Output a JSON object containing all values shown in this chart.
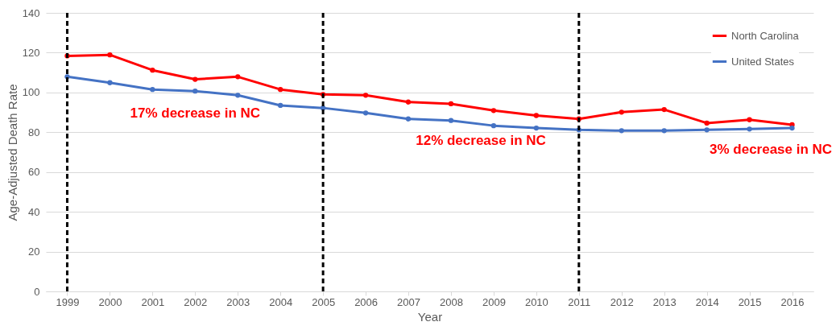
{
  "chart_data": {
    "type": "line",
    "xlabel": "Year",
    "ylabel": "Age-Adjusted Death Rate",
    "categories": [
      "1999",
      "2000",
      "2001",
      "2002",
      "2003",
      "2004",
      "2005",
      "2006",
      "2007",
      "2008",
      "2009",
      "2010",
      "2011",
      "2012",
      "2013",
      "2014",
      "2015",
      "2016"
    ],
    "series": [
      {
        "name": "North Carolina",
        "color": "#ff0000",
        "values": [
          118.4,
          118.9,
          111.2,
          106.6,
          107.9,
          101.5,
          99,
          98.6,
          95.2,
          94.3,
          90.9,
          88.4,
          86.7,
          90.1,
          91.4,
          84.6,
          86.3,
          83.8
        ]
      },
      {
        "name": "United States",
        "color": "#4472c4",
        "values": [
          107.9,
          104.9,
          101.5,
          100.7,
          98.6,
          93.5,
          92.2,
          89.7,
          86.7,
          85.9,
          83.3,
          82.1,
          81.2,
          80.8,
          80.8,
          81.2,
          81.6,
          82.1
        ]
      }
    ],
    "ylim": [
      0,
      140
    ],
    "yticks": [
      0,
      20,
      40,
      60,
      80,
      100,
      120,
      140
    ],
    "grid": "y",
    "legend": "top right",
    "marker": "circle",
    "line_style": "solid",
    "ref_lines": [
      {
        "axis": "x",
        "value": "1999",
        "color": "#000000",
        "line_style": "dashed"
      },
      {
        "axis": "x",
        "value": "2005",
        "color": "#000000",
        "line_style": "dashed"
      },
      {
        "axis": "x",
        "value": "2011",
        "color": "#000000",
        "line_style": "dashed"
      }
    ],
    "annotations": [
      "17% decrease in NC",
      "12% decrease in NC",
      "3% decrease in NC"
    ]
  }
}
